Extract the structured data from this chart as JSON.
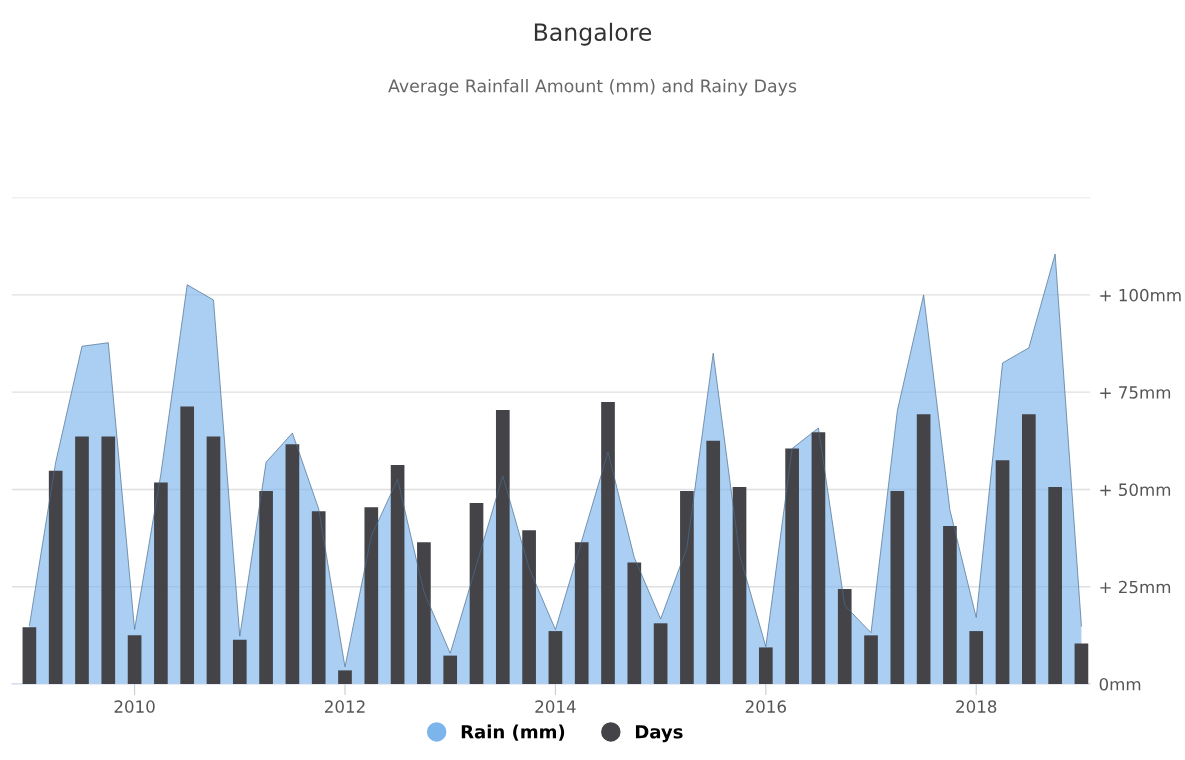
{
  "chart_data": {
    "type": "area",
    "title": "Bangalore",
    "subtitle": "Average Rainfall Amount (mm) and Rainy Days",
    "x": [
      "2009-01",
      "2009-04",
      "2009-07",
      "2009-10",
      "2010-01",
      "2010-04",
      "2010-07",
      "2010-10",
      "2011-01",
      "2011-04",
      "2011-07",
      "2011-10",
      "2012-01",
      "2012-04",
      "2012-07",
      "2012-10",
      "2013-01",
      "2013-04",
      "2013-07",
      "2013-10",
      "2014-01",
      "2014-04",
      "2014-07",
      "2014-10",
      "2015-01",
      "2015-04",
      "2015-07",
      "2015-10",
      "2016-01",
      "2016-04",
      "2016-07",
      "2016-10",
      "2017-01",
      "2017-04",
      "2017-07",
      "2017-10",
      "2018-01",
      "2018-04",
      "2018-07",
      "2018-10",
      "2019-01"
    ],
    "series": [
      {
        "name": "Rain (mm)",
        "color": "#7cb5ec",
        "values": [
          15,
          57,
          86.8,
          87.7,
          14,
          54,
          102.6,
          98.7,
          12.3,
          57,
          64.5,
          45,
          4.4,
          38,
          52.6,
          23.7,
          7.9,
          30.7,
          53.5,
          29.8,
          14,
          36.8,
          59.6,
          32.5,
          16.7,
          35,
          85,
          33.3,
          9.6,
          60.5,
          65.8,
          20.2,
          13.2,
          70.2,
          100,
          44.7,
          17.1,
          82.5,
          86.4,
          110.5,
          14.9
        ]
      },
      {
        "name": "Days",
        "type": "bar",
        "color": "#434348",
        "values": [
          14.6,
          54.8,
          63.6,
          63.6,
          12.5,
          51.8,
          71.3,
          63.6,
          11.4,
          49.6,
          61.6,
          44.4,
          3.5,
          45.4,
          56.3,
          36.4,
          7.3,
          46.5,
          70.4,
          39.5,
          13.6,
          36.4,
          72.5,
          31.2,
          15.6,
          49.6,
          62.5,
          50.6,
          9.4,
          60.5,
          64.7,
          24.4,
          12.5,
          49.6,
          69.3,
          40.6,
          13.6,
          57.5,
          69.3,
          50.6,
          10.4
        ]
      }
    ],
    "xlim": [
      "2008-11",
      "2019-02"
    ],
    "xticks": [
      {
        "value": "2010-01",
        "label": "2010"
      },
      {
        "value": "2012-01",
        "label": "2012"
      },
      {
        "value": "2014-01",
        "label": "2014"
      },
      {
        "value": "2016-01",
        "label": "2016"
      },
      {
        "value": "2018-01",
        "label": "2018"
      }
    ],
    "ylim": [
      0,
      125
    ],
    "yticks": [
      {
        "value": 0,
        "label": "0mm"
      },
      {
        "value": 25,
        "label": "+ 25mm"
      },
      {
        "value": 50,
        "label": "+ 50mm"
      },
      {
        "value": 75,
        "label": "+ 75mm"
      },
      {
        "value": 100,
        "label": "+ 100mm"
      },
      {
        "value": 125,
        "label": null
      }
    ],
    "grid": "y",
    "legend": "bottom"
  }
}
